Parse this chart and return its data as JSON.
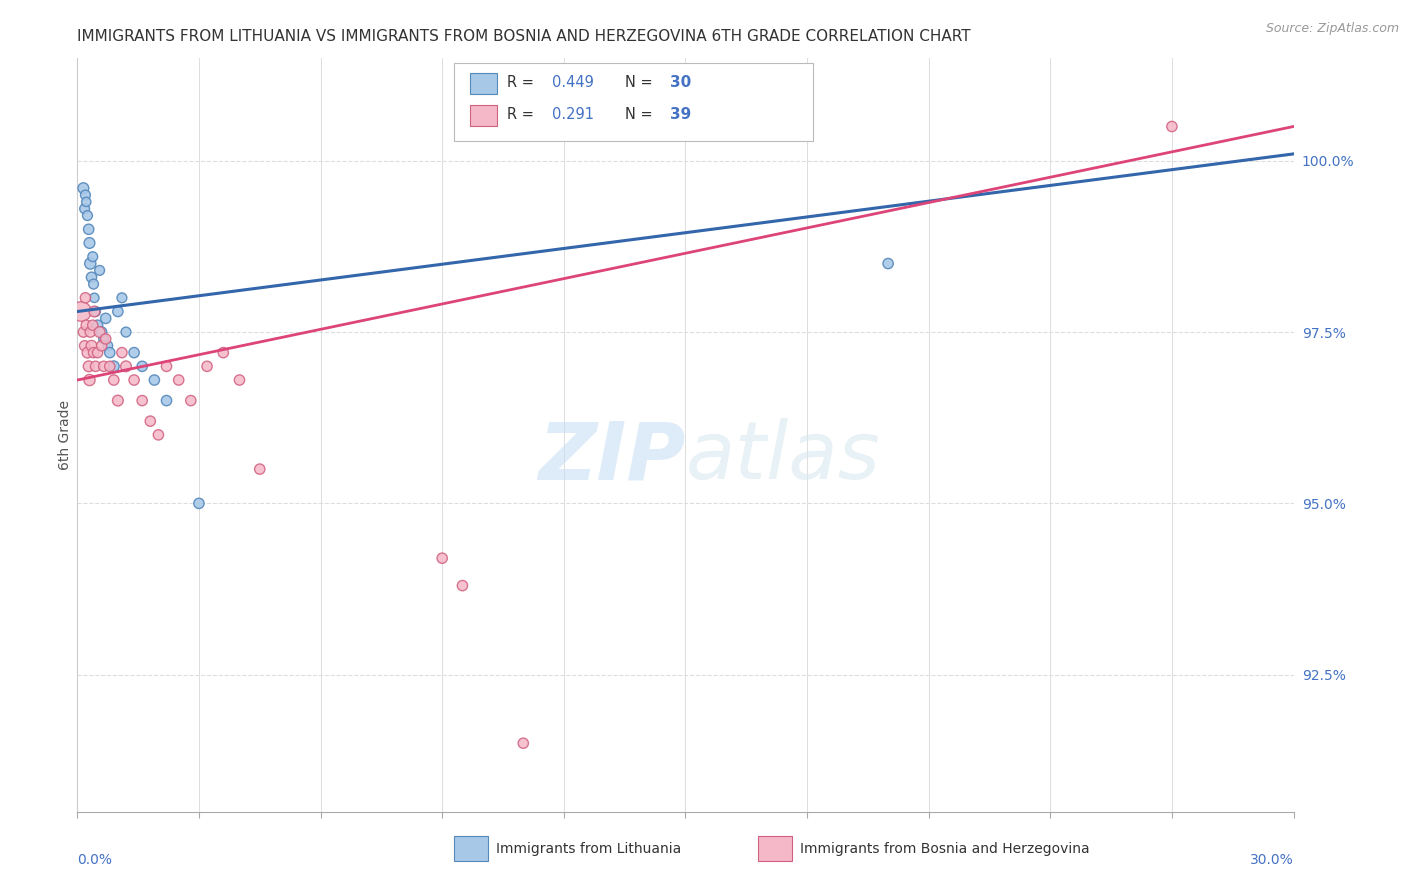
{
  "title": "IMMIGRANTS FROM LITHUANIA VS IMMIGRANTS FROM BOSNIA AND HERZEGOVINA 6TH GRADE CORRELATION CHART",
  "source": "Source: ZipAtlas.com",
  "ylabel": "6th Grade",
  "right_yticks": [
    92.5,
    95.0,
    97.5,
    100.0
  ],
  "right_ytick_labels": [
    "92.5%",
    "95.0%",
    "97.5%",
    "100.0%"
  ],
  "xlim": [
    0.0,
    30.0
  ],
  "ylim": [
    90.5,
    101.5
  ],
  "legend_r1": "R = 0.449",
  "legend_n1": "N = 30",
  "legend_r2": "R = 0.291",
  "legend_n2": "N = 39",
  "blue_color": "#a8c8e8",
  "blue_edge_color": "#5588bb",
  "pink_color": "#f5b8c8",
  "pink_edge_color": "#d06080",
  "blue_line_color": "#3366aa",
  "pink_line_color": "#dd4477",
  "watermark_zip": "ZIP",
  "watermark_atlas": "atlas",
  "background_color": "#ffffff",
  "title_color": "#333333",
  "source_color": "#999999",
  "right_axis_color": "#4472c4",
  "grid_color": "#dddddd",
  "blue_scatter_x": [
    0.15,
    0.18,
    0.2,
    0.22,
    0.25,
    0.28,
    0.3,
    0.32,
    0.35,
    0.38,
    0.4,
    0.42,
    0.45,
    0.5,
    0.55,
    0.6,
    0.65,
    0.7,
    0.75,
    0.8,
    0.9,
    1.0,
    1.1,
    1.2,
    1.4,
    1.6,
    1.9,
    2.2,
    3.0,
    20.0
  ],
  "blue_scatter_y": [
    99.6,
    99.3,
    99.5,
    99.4,
    99.2,
    99.0,
    98.8,
    98.5,
    98.3,
    98.6,
    98.2,
    98.0,
    97.8,
    97.6,
    98.4,
    97.5,
    97.4,
    97.7,
    97.3,
    97.2,
    97.0,
    97.8,
    98.0,
    97.5,
    97.2,
    97.0,
    96.8,
    96.5,
    95.0,
    98.5
  ],
  "blue_scatter_s": [
    60,
    50,
    50,
    45,
    50,
    55,
    60,
    65,
    55,
    50,
    50,
    45,
    50,
    55,
    50,
    55,
    50,
    55,
    50,
    55,
    60,
    55,
    50,
    50,
    55,
    55,
    55,
    55,
    55,
    55
  ],
  "pink_scatter_x": [
    0.1,
    0.15,
    0.18,
    0.2,
    0.22,
    0.25,
    0.28,
    0.3,
    0.32,
    0.35,
    0.38,
    0.4,
    0.42,
    0.45,
    0.5,
    0.55,
    0.6,
    0.65,
    0.7,
    0.8,
    0.9,
    1.0,
    1.1,
    1.2,
    1.4,
    1.6,
    1.8,
    2.0,
    2.2,
    2.5,
    2.8,
    3.2,
    3.6,
    4.0,
    4.5,
    9.0,
    9.5,
    11.0,
    27.0
  ],
  "pink_scatter_y": [
    97.8,
    97.5,
    97.3,
    98.0,
    97.6,
    97.2,
    97.0,
    96.8,
    97.5,
    97.3,
    97.6,
    97.2,
    97.8,
    97.0,
    97.2,
    97.5,
    97.3,
    97.0,
    97.4,
    97.0,
    96.8,
    96.5,
    97.2,
    97.0,
    96.8,
    96.5,
    96.2,
    96.0,
    97.0,
    96.8,
    96.5,
    97.0,
    97.2,
    96.8,
    95.5,
    94.2,
    93.8,
    91.5,
    100.5
  ],
  "pink_scatter_s": [
    200,
    55,
    55,
    55,
    55,
    60,
    60,
    65,
    55,
    60,
    55,
    55,
    60,
    55,
    55,
    60,
    55,
    55,
    55,
    55,
    55,
    60,
    55,
    60,
    55,
    55,
    55,
    55,
    55,
    55,
    55,
    55,
    55,
    55,
    55,
    55,
    55,
    55,
    55
  ],
  "blue_line_x": [
    0.0,
    30.0
  ],
  "blue_line_y": [
    97.8,
    100.1
  ],
  "pink_line_x": [
    0.0,
    30.0
  ],
  "pink_line_y": [
    96.8,
    100.5
  ]
}
